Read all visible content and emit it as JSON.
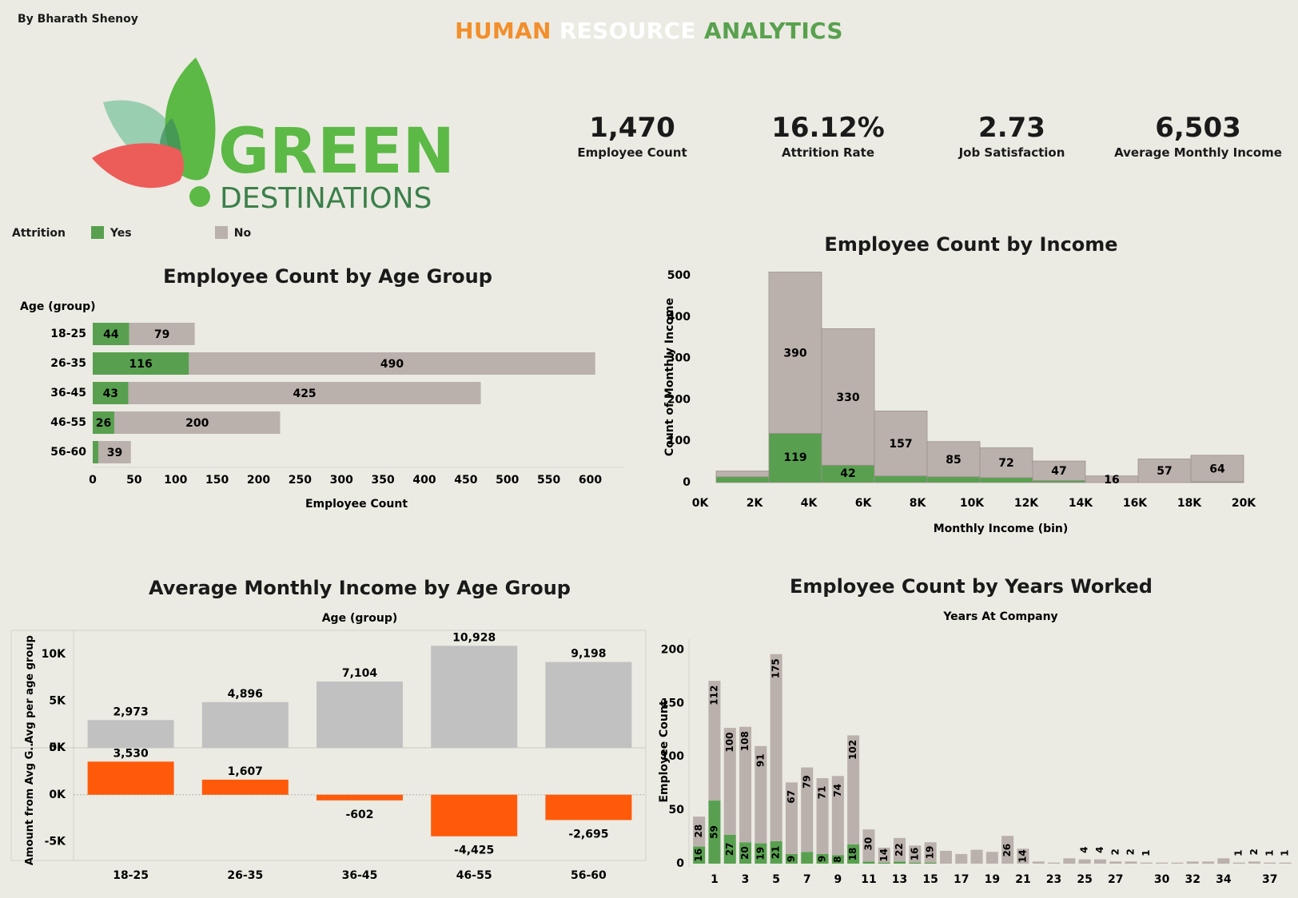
{
  "header": {
    "author": "By Bharath Shenoy",
    "title_word1": "HUMAN",
    "title_word2": "RESOURCE",
    "title_word3": "ANALYTICS"
  },
  "logo": {
    "line1": "GREEN",
    "line2": "DESTINATIONS"
  },
  "kpis": [
    {
      "value": "1,470",
      "label": "Employee Count"
    },
    {
      "value": "16.12%",
      "label": "Attrition Rate"
    },
    {
      "value": "2.73",
      "label": "Job Satisfaction"
    },
    {
      "value": "6,503",
      "label": "Average Monthly Income"
    }
  ],
  "legend": {
    "title": "Attrition",
    "yes": "Yes",
    "no": "No"
  },
  "colors": {
    "yes": "#58a04f",
    "no": "#bab0ac",
    "avg_bar": "#c1c1c1",
    "diff_bar": "#ff5a0a",
    "title_orange": "#f28e2b",
    "title_white": "#ffffff",
    "title_green": "#59a14f"
  },
  "chart_titles": {
    "age": "Employee Count by Age Group",
    "income": "Employee Count by Income",
    "avg_income": "Average Monthly Income by Age Group",
    "years": "Employee Count by Years Worked"
  },
  "chart_data": [
    {
      "id": "age",
      "type": "bar",
      "orientation": "horizontal",
      "stacked": true,
      "title": "Employee Count by Age Group",
      "row_header": "Age (group)",
      "xlabel": "Employee Count",
      "categories": [
        "18-25",
        "26-35",
        "36-45",
        "46-55",
        "56-60"
      ],
      "series": [
        {
          "name": "Yes",
          "values": [
            44,
            116,
            43,
            26,
            7
          ],
          "labels": [
            "44",
            "116",
            "43",
            "26",
            ""
          ]
        },
        {
          "name": "No",
          "values": [
            79,
            490,
            425,
            200,
            39
          ],
          "labels": [
            "79",
            "490",
            "425",
            "200",
            "39"
          ]
        }
      ],
      "xlim": [
        0,
        640
      ],
      "xticks": [
        0,
        50,
        100,
        150,
        200,
        250,
        300,
        350,
        400,
        450,
        500,
        550,
        600
      ]
    },
    {
      "id": "income",
      "type": "bar",
      "stacked": true,
      "title": "Employee Count by Income",
      "xlabel": "Monthly Income (bin)",
      "ylabel": "Count of Monthly Income",
      "bins_start": [
        0,
        2000,
        4000,
        6000,
        8000,
        10000,
        12000,
        14000,
        16000,
        18000
      ],
      "bin_width": 2000,
      "series": [
        {
          "name": "Yes",
          "values": [
            14,
            119,
            42,
            16,
            14,
            12,
            5,
            0,
            0,
            2
          ],
          "labels": [
            "",
            "119",
            "42",
            "",
            "",
            "",
            "",
            "",
            "",
            ""
          ]
        },
        {
          "name": "No",
          "values": [
            14,
            390,
            330,
            157,
            85,
            72,
            47,
            16,
            57,
            64
          ],
          "labels": [
            "",
            "390",
            "330",
            "157",
            "85",
            "72",
            "47",
            "16",
            "57",
            "64"
          ]
        }
      ],
      "ylim": [
        0,
        510
      ],
      "yticks": [
        0,
        100,
        200,
        300,
        400,
        500
      ],
      "xtick_labels": [
        "0K",
        "2K",
        "4K",
        "6K",
        "8K",
        "10K",
        "12K",
        "14K",
        "16K",
        "18K",
        "20K"
      ]
    },
    {
      "id": "avg_income",
      "type": "bar",
      "title": "Average Monthly Income by Age Group",
      "column_header": "Age (group)",
      "categories": [
        "18-25",
        "26-35",
        "36-45",
        "46-55",
        "56-60"
      ],
      "panels": [
        {
          "ylabel": "Avg per age group",
          "values": [
            2973,
            4896,
            7104,
            10928,
            9198
          ],
          "labels": [
            "2,973",
            "4,896",
            "7,104",
            "10,928",
            "9,198"
          ],
          "ylim": [
            0,
            12500
          ],
          "yticks": [
            0,
            5000,
            10000
          ],
          "ytick_labels": [
            "0K",
            "5K",
            "10K"
          ]
        },
        {
          "ylabel": "Amount from Avg G..",
          "values": [
            3530,
            1607,
            -602,
            -4425,
            -2695
          ],
          "labels": [
            "3,530",
            "1,607",
            "-602",
            "-4,425",
            "-2,695"
          ],
          "ylim": [
            -7000,
            5000
          ],
          "yticks": [
            -5000,
            0,
            5000
          ],
          "ytick_labels": [
            "-5K",
            "0K",
            "5K"
          ]
        }
      ]
    },
    {
      "id": "years",
      "type": "bar",
      "stacked": true,
      "title": "Employee Count by Years Worked",
      "column_header": "Years At Company",
      "ylabel": "Employee Count",
      "x": [
        0,
        1,
        2,
        3,
        4,
        5,
        6,
        7,
        8,
        9,
        10,
        11,
        12,
        13,
        14,
        15,
        16,
        17,
        18,
        19,
        20,
        21,
        22,
        23,
        24,
        25,
        26,
        27,
        28,
        29,
        30,
        31,
        32,
        33,
        34,
        35,
        36,
        37,
        38
      ],
      "series": [
        {
          "name": "Yes",
          "values": [
            16,
            59,
            27,
            20,
            19,
            21,
            9,
            11,
            9,
            8,
            18,
            2,
            1,
            2,
            1,
            1,
            0,
            0,
            0,
            0,
            0,
            0,
            0,
            0,
            0,
            0,
            0,
            0,
            0,
            0,
            0,
            0,
            0,
            0,
            0,
            0,
            0,
            0,
            0
          ],
          "labels": [
            "16",
            "59",
            "27",
            "20",
            "19",
            "21",
            "9",
            "",
            "9",
            "8",
            "18",
            "",
            "",
            "",
            "",
            "",
            "",
            "",
            "",
            "",
            "",
            "",
            "",
            "",
            "",
            "",
            "",
            "",
            "",
            "",
            "",
            "",
            "",
            "",
            "",
            "",
            "",
            "",
            ""
          ]
        },
        {
          "name": "No",
          "values": [
            28,
            112,
            100,
            108,
            91,
            175,
            67,
            79,
            71,
            74,
            102,
            30,
            14,
            22,
            16,
            19,
            12,
            9,
            13,
            11,
            26,
            14,
            2,
            1,
            5,
            4,
            4,
            2,
            2,
            1,
            1,
            1,
            2,
            2,
            5,
            1,
            2,
            1,
            1
          ],
          "labels": [
            "28",
            "112",
            "100",
            "108",
            "91",
            "175",
            "67",
            "79",
            "71",
            "74",
            "102",
            "30",
            "14",
            "22",
            "16",
            "19",
            "",
            "",
            "",
            "",
            "26",
            "14",
            "",
            "",
            "",
            "4",
            "4",
            "2",
            "2",
            "1",
            "",
            "",
            "",
            "",
            "",
            "1",
            "2",
            "1",
            "1"
          ]
        }
      ],
      "ylim": [
        0,
        210
      ],
      "yticks": [
        0,
        50,
        100,
        150,
        200
      ],
      "xtick_labels": [
        "1",
        "3",
        "5",
        "7",
        "9",
        "11",
        "13",
        "15",
        "17",
        "19",
        "21",
        "23",
        "25",
        "27",
        "30",
        "32",
        "34",
        "37"
      ]
    }
  ]
}
